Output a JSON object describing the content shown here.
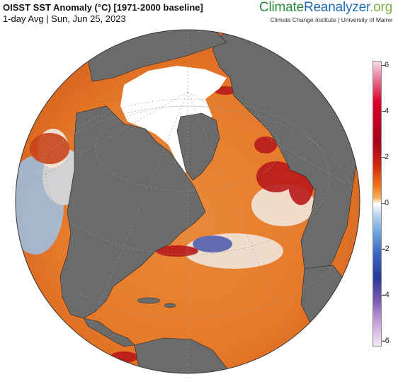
{
  "header": {
    "title": "OISST SST Anomaly (°C) [1971-2000 baseline]",
    "subtitle": "1-day Avg | Sun, Jun 25, 2023"
  },
  "brand": {
    "part1": "Climate",
    "part2": "Reanalyzer",
    "part3": ".org",
    "affiliation": "Climate Change Institute | University of Maine"
  },
  "colorbar": {
    "labels": [
      "6",
      "4",
      "2",
      "0",
      "-2",
      "-4",
      "-6"
    ],
    "min": -6,
    "max": 6
  },
  "colors": {
    "land": "#6b6b6b",
    "ice": "#ffffff",
    "warm": "#e0731e",
    "hot": "#b3121a",
    "cool": "#6ea6dc",
    "ocean_neutral": "#f4f0ea"
  }
}
